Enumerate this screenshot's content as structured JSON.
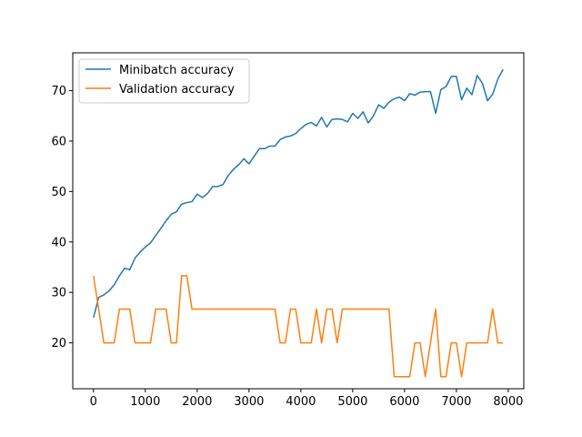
{
  "chart_data": {
    "type": "line",
    "title": "",
    "xlabel": "",
    "ylabel": "",
    "xlim": [
      -400,
      8300
    ],
    "ylim": [
      10.9,
      77.5
    ],
    "xticks": [
      0,
      1000,
      2000,
      3000,
      4000,
      5000,
      6000,
      7000,
      8000
    ],
    "yticks": [
      20,
      30,
      40,
      50,
      60,
      70
    ],
    "grid": false,
    "legend_position": "top-left",
    "series": [
      {
        "name": "Minibatch accuracy",
        "color": "#1f77b4",
        "x": [
          0,
          100,
          200,
          300,
          400,
          500,
          600,
          700,
          800,
          900,
          1000,
          1100,
          1200,
          1300,
          1400,
          1500,
          1600,
          1700,
          1800,
          1900,
          2000,
          2100,
          2200,
          2300,
          2400,
          2500,
          2600,
          2700,
          2800,
          2900,
          3000,
          3100,
          3200,
          3300,
          3400,
          3500,
          3600,
          3700,
          3800,
          3900,
          4000,
          4100,
          4200,
          4300,
          4400,
          4500,
          4600,
          4700,
          4800,
          4900,
          5000,
          5100,
          5200,
          5300,
          5400,
          5500,
          5600,
          5700,
          5800,
          5900,
          6000,
          6100,
          6200,
          6300,
          6400,
          6500,
          6600,
          6700,
          6800,
          6900,
          7000,
          7100,
          7200,
          7300,
          7400,
          7500,
          7600,
          7700,
          7800,
          7900
        ],
        "values": [
          25.0,
          29.0,
          29.5,
          30.3,
          31.5,
          33.3,
          34.8,
          34.5,
          36.8,
          38.0,
          39.0,
          39.8,
          41.3,
          42.7,
          44.2,
          45.5,
          46.0,
          47.5,
          47.8,
          48.0,
          49.5,
          48.8,
          49.6,
          51.0,
          51.0,
          51.4,
          53.2,
          54.4,
          55.3,
          56.5,
          55.5,
          57.0,
          58.5,
          58.5,
          59.0,
          59.0,
          60.3,
          60.8,
          61.0,
          61.5,
          62.5,
          63.3,
          63.7,
          63.0,
          64.7,
          62.8,
          64.3,
          64.4,
          64.3,
          63.8,
          65.5,
          64.5,
          65.8,
          63.6,
          65.0,
          67.2,
          66.5,
          67.7,
          68.4,
          68.7,
          68.0,
          69.4,
          69.1,
          69.7,
          69.8,
          69.8,
          65.5,
          70.2,
          70.8,
          72.8,
          72.8,
          68.2,
          70.5,
          69.2,
          73.0,
          71.5,
          68.0,
          69.3,
          72.3,
          74.2
        ]
      },
      {
        "name": "Validation accuracy",
        "color": "#ff7f0e",
        "x": [
          0,
          100,
          200,
          300,
          400,
          500,
          600,
          700,
          800,
          900,
          1000,
          1100,
          1200,
          1300,
          1400,
          1500,
          1600,
          1700,
          1800,
          1900,
          2000,
          2100,
          2200,
          2300,
          2400,
          2500,
          2600,
          2700,
          2800,
          2900,
          3000,
          3100,
          3200,
          3300,
          3400,
          3500,
          3600,
          3700,
          3800,
          3900,
          4000,
          4100,
          4200,
          4300,
          4400,
          4500,
          4600,
          4700,
          4800,
          4900,
          5000,
          5100,
          5200,
          5300,
          5400,
          5500,
          5600,
          5700,
          5800,
          5900,
          6000,
          6100,
          6200,
          6300,
          6400,
          6500,
          6600,
          6700,
          6800,
          6900,
          7000,
          7100,
          7200,
          7300,
          7400,
          7500,
          7600,
          7700,
          7800,
          7900
        ],
        "values": [
          33.3,
          26.7,
          20.0,
          20.0,
          20.0,
          26.7,
          26.7,
          26.7,
          20.0,
          20.0,
          20.0,
          20.0,
          26.7,
          26.7,
          26.7,
          20.0,
          20.0,
          33.3,
          33.3,
          26.7,
          26.7,
          26.7,
          26.7,
          26.7,
          26.7,
          26.7,
          26.7,
          26.7,
          26.7,
          26.7,
          26.7,
          26.7,
          26.7,
          26.7,
          26.7,
          26.7,
          20.0,
          20.0,
          26.7,
          26.7,
          20.0,
          20.0,
          20.0,
          26.7,
          20.0,
          26.7,
          26.7,
          20.0,
          26.7,
          26.7,
          26.7,
          26.7,
          26.7,
          26.7,
          26.7,
          26.7,
          26.7,
          26.7,
          13.3,
          13.3,
          13.3,
          13.3,
          20.0,
          20.0,
          13.3,
          20.0,
          26.7,
          13.3,
          13.3,
          20.0,
          20.0,
          13.3,
          20.0,
          20.0,
          20.0,
          20.0,
          20.0,
          26.7,
          20.0,
          20.0
        ]
      }
    ]
  }
}
